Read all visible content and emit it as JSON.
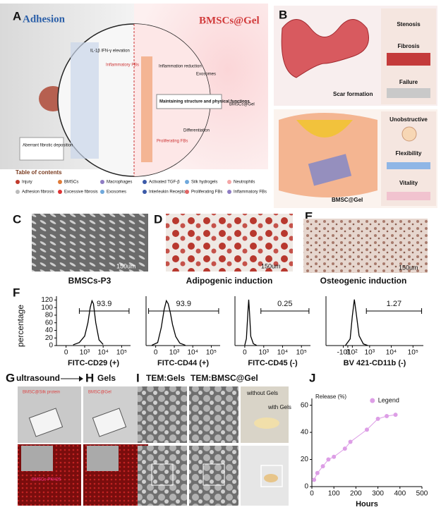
{
  "panel_labels": [
    "A",
    "B",
    "C",
    "D",
    "E",
    "F",
    "G",
    "H",
    "I",
    "J"
  ],
  "panel_a": {
    "left_title": "Adhesion",
    "right_title": "BMSCs@Gel",
    "callouts": [
      "IL-1β IFN-γ elevation",
      "Inflammatory FBs",
      "Inflammation reduction",
      "Exosomes",
      "Maintaining structure and physical functions",
      "BMSCs@Gel",
      "Differentiation",
      "Proliferating FBs",
      "Aberrant fibrotic deposition"
    ],
    "toc_title": "Table of contents",
    "toc_items": [
      "Injury",
      "BMSCs",
      "Macrophages",
      "Activated TGF-β",
      "Silk hydrogels",
      "Neutrophils",
      "Adhesion fibrosis",
      "Excessive fibrosis",
      "Exosomes",
      "Interleukin Receptor",
      "Proliferating FBs",
      "Inflammatory FBs"
    ]
  },
  "panel_b": {
    "top_labels": [
      "Stenosis",
      "Fibrosis",
      "Failure"
    ],
    "top_caption": "Scar formation",
    "bottom_labels": [
      "Unobstructive",
      "Flexibility",
      "Vitality"
    ],
    "bottom_caption": "BMSC@Gel"
  },
  "panel_cde": {
    "captions": [
      "BMSCs-P3",
      "Adipogenic induction",
      "Osteogenic induction"
    ],
    "scale_bar": "150um"
  },
  "flow": {
    "y_label": "percentage"
  },
  "panel_gh": {
    "step": "ultrasound",
    "gels": "Gels",
    "image_labels": [
      "BMSC@Silk protein",
      "BMSC@Gel",
      "BMSCs-PKH26"
    ]
  },
  "panel_i": {
    "headers": [
      "TEM:Gels",
      "TEM:BMSC@Gel"
    ],
    "photo_labels": [
      "without Gels",
      "with Gels"
    ]
  },
  "chart_data": [
    {
      "type": "line",
      "x_label": "FITC-CD29 (+)",
      "x_scale": "biexponential",
      "color": "#000000",
      "x": [
        200,
        500,
        1000,
        1500,
        2000,
        2500,
        3000,
        4000,
        6000,
        10000
      ],
      "values": [
        2,
        8,
        25,
        60,
        100,
        118,
        110,
        60,
        15,
        3
      ],
      "xlim": [
        -300,
        300000
      ],
      "xticks": [
        0,
        {
          "value": 1000,
          "label": "10³"
        },
        {
          "value": 10000,
          "label": "10⁴"
        },
        {
          "value": 100000,
          "label": "10⁵"
        }
      ],
      "ylim": [
        0,
        130
      ],
      "yticks": [
        0,
        20,
        40,
        60,
        80,
        100,
        120
      ],
      "gate_value": 93.9,
      "gate_range": [
        500,
        250000
      ]
    },
    {
      "type": "line",
      "x_label": "FITC-CD44 (+)",
      "x_scale": "biexponential",
      "color": "#000000",
      "x": [
        -100,
        50,
        150,
        250,
        350,
        450,
        600,
        800,
        1200,
        2000,
        4000
      ],
      "values": [
        1,
        10,
        60,
        120,
        150,
        140,
        110,
        70,
        30,
        8,
        1
      ],
      "xlim": [
        -300,
        300000
      ],
      "xticks": [
        0,
        {
          "value": 1000,
          "label": "10³"
        },
        {
          "value": 10000,
          "label": "10⁴"
        },
        {
          "value": 100000,
          "label": "10⁵"
        }
      ],
      "ylim": [
        0,
        165
      ],
      "gate_value": 93.9,
      "gate_range": [
        -200,
        250000
      ]
    },
    {
      "type": "line",
      "x_label": "FITC-CD45 (-)",
      "x_scale": "biexponential",
      "color": "#000000",
      "x": [
        0,
        40,
        80,
        100,
        120,
        160,
        250,
        400
      ],
      "values": [
        2,
        30,
        150,
        200,
        150,
        40,
        8,
        1
      ],
      "xlim": [
        -300,
        300000
      ],
      "xticks": [
        0,
        {
          "value": 1000,
          "label": "10³"
        },
        {
          "value": 10000,
          "label": "10⁴"
        },
        {
          "value": 100000,
          "label": "10⁵"
        }
      ],
      "ylim": [
        0,
        215
      ],
      "gate_value": 0.25,
      "gate_range": [
        700,
        250000
      ]
    },
    {
      "type": "line",
      "x_label": "BV 421-CD11b (-)",
      "x_scale": "biexponential",
      "color": "#000000",
      "x": [
        -50,
        50,
        100,
        150,
        200,
        300,
        500,
        800
      ],
      "values": [
        1,
        40,
        180,
        280,
        200,
        60,
        10,
        1
      ],
      "xlim": [
        -1000,
        300000
      ],
      "xticks": [
        {
          "value": -100,
          "label": "-10²"
        },
        0,
        {
          "value": 100,
          "label": "10²"
        },
        {
          "value": 1000,
          "label": "10³"
        },
        {
          "value": 10000,
          "label": "10⁴"
        },
        {
          "value": 100000,
          "label": "10⁵"
        }
      ],
      "ylim": [
        0,
        300
      ],
      "gate_value": 1.27,
      "gate_range": [
        700,
        250000
      ]
    },
    {
      "type": "line",
      "x_label": "Hours",
      "y_label": "Release (%)",
      "markers": true,
      "x": [
        10,
        25,
        50,
        75,
        100,
        150,
        175,
        250,
        300,
        340,
        380
      ],
      "series": [
        {
          "name": "Legend",
          "color": "#dd9ee6",
          "values": [
            5,
            10,
            15,
            20,
            22,
            28,
            33,
            42,
            50,
            52,
            53
          ]
        }
      ],
      "xlim": [
        0,
        500
      ],
      "xticks": [
        0,
        100,
        200,
        300,
        400,
        500
      ],
      "ylim": [
        0,
        65
      ],
      "yticks": [
        0,
        20,
        40,
        60
      ]
    }
  ]
}
